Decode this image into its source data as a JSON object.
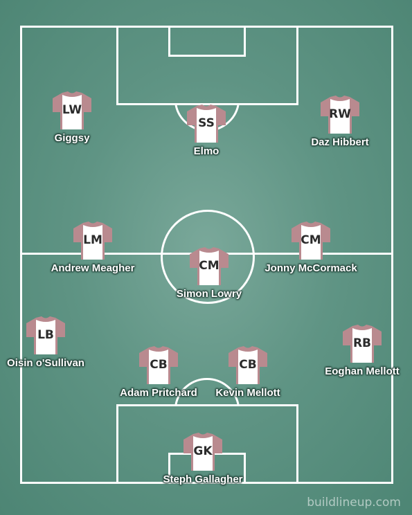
{
  "pitch": {
    "background_color": "#5f9484",
    "line_color": "#ffffff"
  },
  "shirt": {
    "body_color": "#ffffff",
    "sleeve_color": "#b98a8f",
    "text_color": "#2b2b2b"
  },
  "players": [
    {
      "position": "LW",
      "name": "Giggsy"
    },
    {
      "position": "SS",
      "name": "Elmo"
    },
    {
      "position": "RW",
      "name": "Daz Hibbert"
    },
    {
      "position": "LM",
      "name": "Andrew Meagher"
    },
    {
      "position": "CM",
      "name": "Simon Lowry"
    },
    {
      "position": "CM",
      "name": "Jonny McCormack"
    },
    {
      "position": "LB",
      "name": "Oisin o'Sullivan"
    },
    {
      "position": "CB",
      "name": "Adam Pritchard"
    },
    {
      "position": "CB",
      "name": "Kevin Mellott"
    },
    {
      "position": "RB",
      "name": "Eoghan Mellott"
    },
    {
      "position": "GK",
      "name": "Steph Gallagher"
    }
  ],
  "watermark": "buildlineup.com"
}
